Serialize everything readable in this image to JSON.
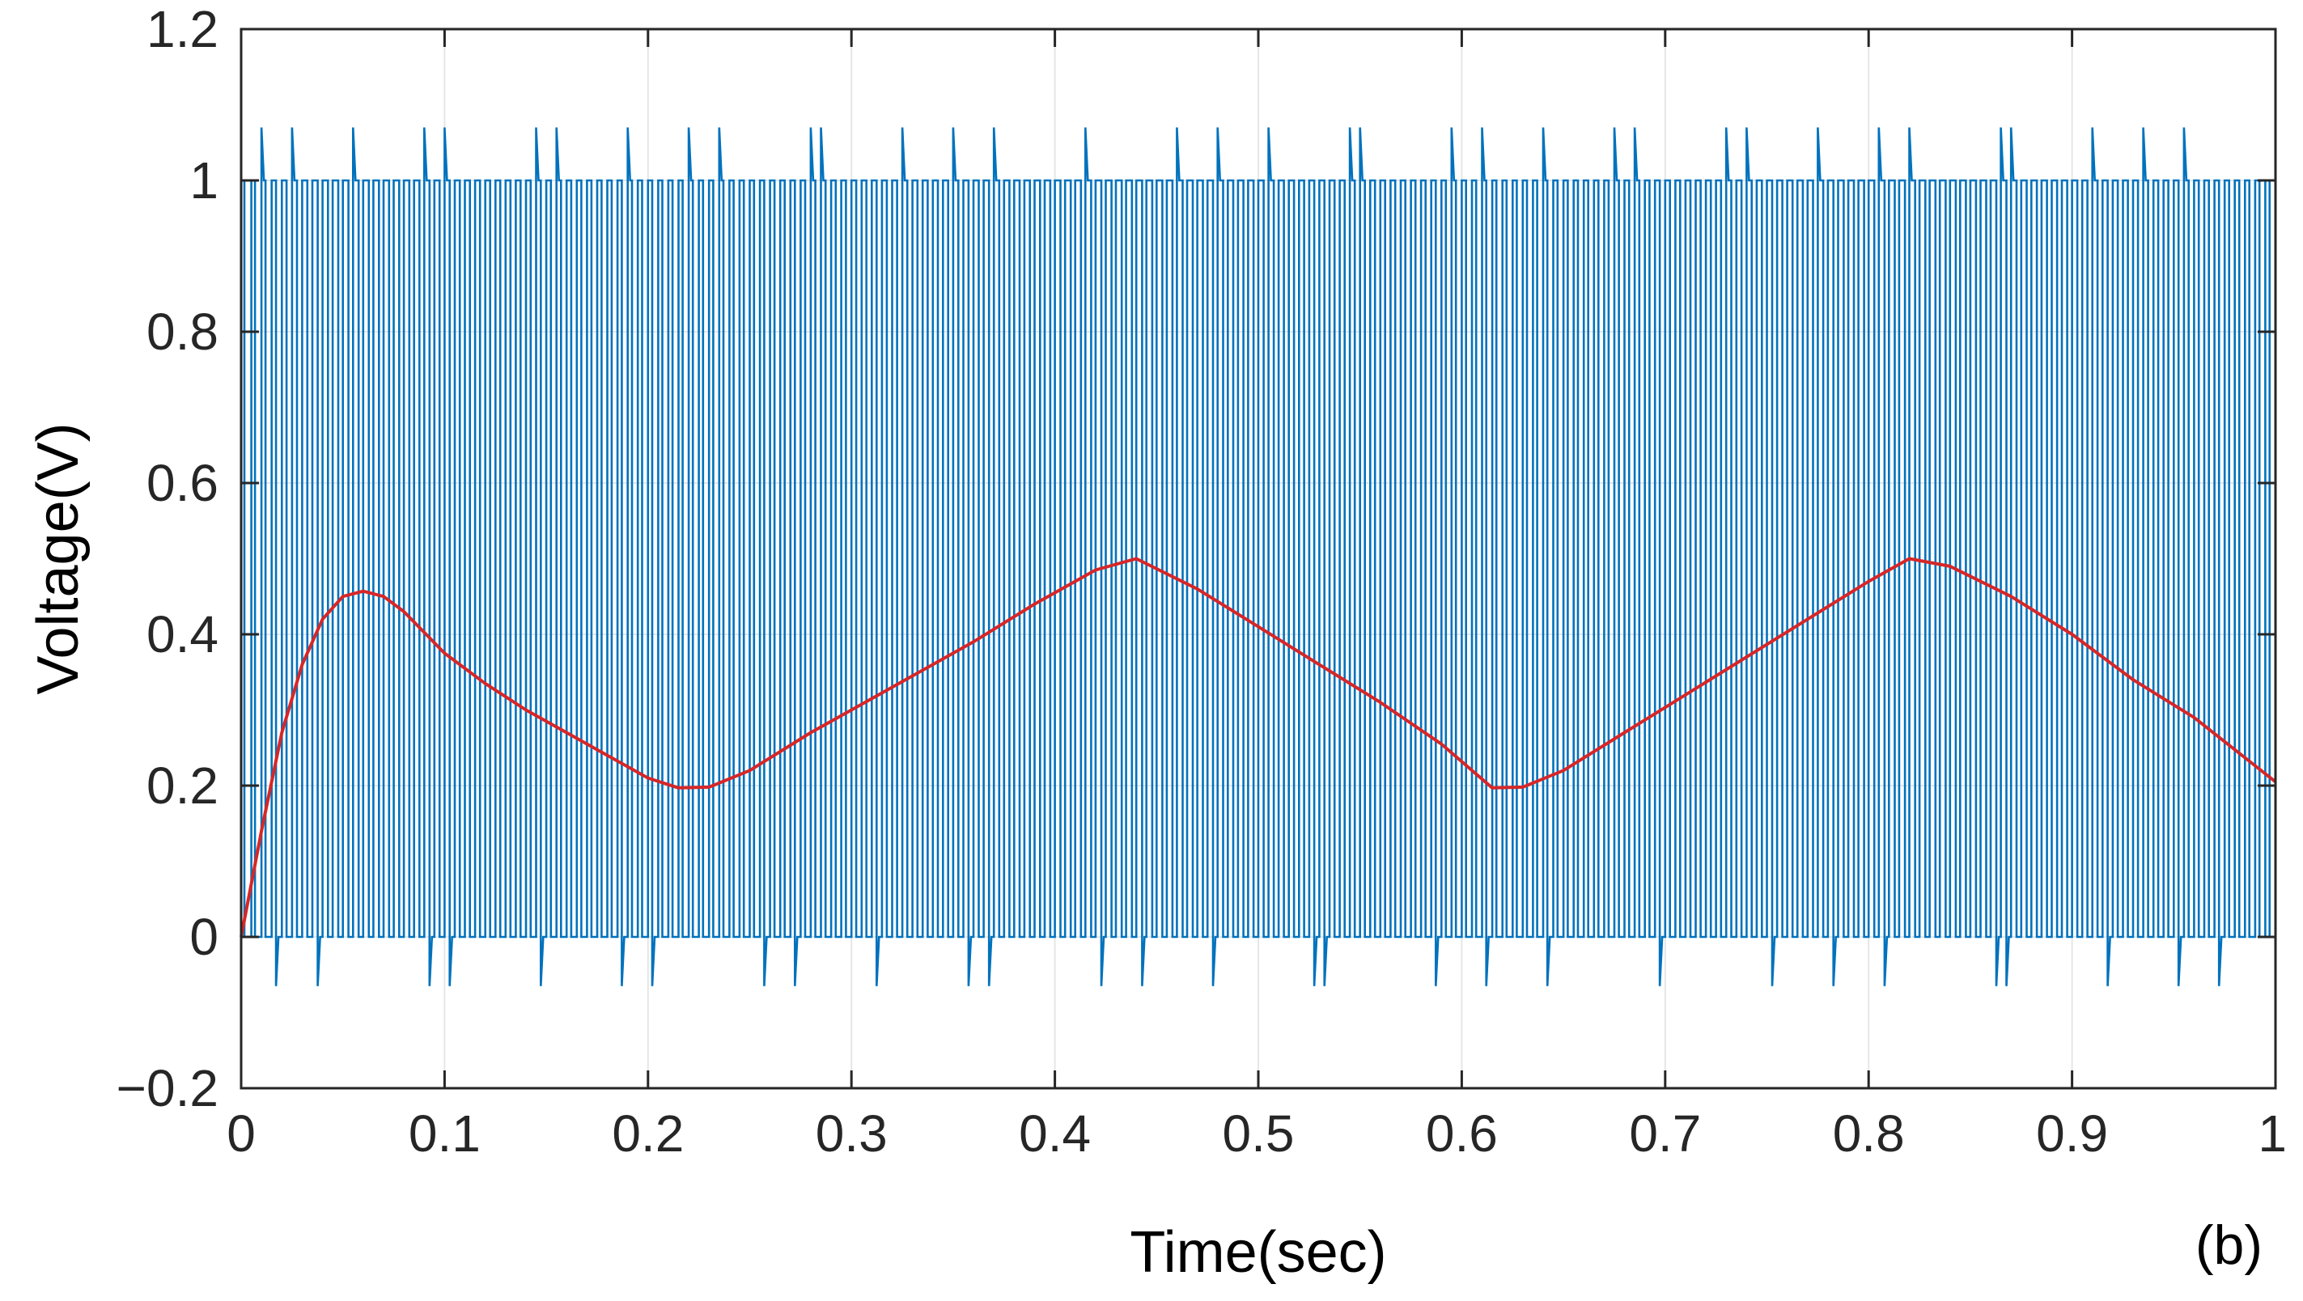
{
  "chart_data": {
    "type": "line",
    "title": "",
    "xlabel": "Time(sec)",
    "ylabel": "Voltage(V)",
    "panel_label": "(b)",
    "xlim": [
      0,
      1
    ],
    "ylim": [
      -0.2,
      1.2
    ],
    "grid": true,
    "xticks": [
      0,
      0.1,
      0.2,
      0.3,
      0.4,
      0.5,
      0.6,
      0.7,
      0.8,
      0.9,
      1
    ],
    "xtick_labels": [
      "0",
      "0.1",
      "0.2",
      "0.3",
      "0.4",
      "0.5",
      "0.6",
      "0.7",
      "0.8",
      "0.9",
      "1"
    ],
    "yticks": [
      -0.2,
      0,
      0.2,
      0.4,
      0.6,
      0.8,
      1,
      1.2
    ],
    "ytick_labels": [
      "−0.2",
      "0",
      "0.2",
      "0.4",
      "0.6",
      "0.8",
      "1",
      "1.2"
    ],
    "colors": {
      "pwm": "#0072BD",
      "filtered": "#D62728",
      "grid": "#e6e6e6",
      "axis": "#262626"
    },
    "series": [
      {
        "id": "pwm",
        "kind": "pwm",
        "pulse_count": 200,
        "low": 0,
        "high": 1,
        "overshoot_high": 1.07,
        "undershoot_low": -0.065
      },
      {
        "id": "filtered",
        "kind": "line",
        "x": [
          0,
          0.01,
          0.02,
          0.03,
          0.04,
          0.05,
          0.06,
          0.07,
          0.08,
          0.1,
          0.12,
          0.14,
          0.16,
          0.18,
          0.2,
          0.215,
          0.23,
          0.25,
          0.28,
          0.3,
          0.33,
          0.36,
          0.39,
          0.42,
          0.44,
          0.47,
          0.5,
          0.53,
          0.56,
          0.59,
          0.615,
          0.63,
          0.65,
          0.68,
          0.71,
          0.74,
          0.77,
          0.8,
          0.82,
          0.84,
          0.87,
          0.9,
          0.93,
          0.96,
          1.0
        ],
        "y": [
          0,
          0.14,
          0.27,
          0.36,
          0.42,
          0.45,
          0.457,
          0.45,
          0.43,
          0.375,
          0.335,
          0.3,
          0.27,
          0.24,
          0.21,
          0.197,
          0.198,
          0.22,
          0.27,
          0.3,
          0.345,
          0.39,
          0.44,
          0.485,
          0.5,
          0.46,
          0.41,
          0.36,
          0.31,
          0.255,
          0.197,
          0.198,
          0.22,
          0.27,
          0.32,
          0.37,
          0.42,
          0.47,
          0.5,
          0.49,
          0.45,
          0.4,
          0.34,
          0.29,
          0.205
        ]
      }
    ]
  }
}
